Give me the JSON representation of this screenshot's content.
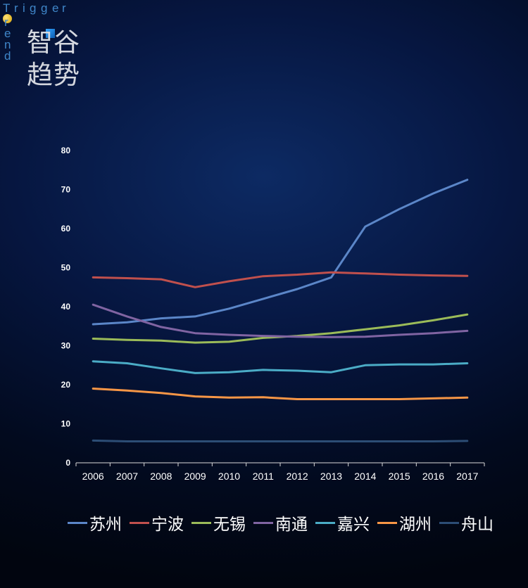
{
  "brand": {
    "letters": [
      "T",
      "r",
      "i",
      "g",
      "g",
      "e",
      "r",
      "r",
      "e",
      "n",
      "d"
    ],
    "cn_line1": "智谷",
    "cn_line2": "趋势"
  },
  "chart_data": {
    "type": "line",
    "x": [
      "2006",
      "2007",
      "2008",
      "2009",
      "2010",
      "2011",
      "2012",
      "2013",
      "2014",
      "2015",
      "2016",
      "2017"
    ],
    "ylim": [
      0,
      80
    ],
    "yticks": [
      0,
      10,
      20,
      30,
      40,
      50,
      60,
      70,
      80
    ],
    "grid": false,
    "legend_position": "bottom",
    "series": [
      {
        "name": "苏州",
        "color": "#5b86c8",
        "values": [
          35.5,
          36,
          37,
          37.5,
          39.5,
          42,
          44.5,
          47.5,
          60.5,
          65,
          69,
          72.5
        ]
      },
      {
        "name": "宁波",
        "color": "#c0504d",
        "values": [
          47.5,
          47.3,
          47,
          45,
          46.5,
          47.8,
          48.2,
          48.8,
          48.5,
          48.2,
          48,
          47.9
        ]
      },
      {
        "name": "无锡",
        "color": "#9bbb59",
        "values": [
          31.8,
          31.5,
          31.3,
          30.8,
          31,
          32,
          32.5,
          33.2,
          34.2,
          35.2,
          36.5,
          38
        ]
      },
      {
        "name": "南通",
        "color": "#8064a2",
        "values": [
          40.5,
          37.5,
          34.8,
          33.2,
          32.8,
          32.5,
          32.3,
          32.2,
          32.3,
          32.8,
          33.2,
          33.8
        ]
      },
      {
        "name": "嘉兴",
        "color": "#4bacc6",
        "values": [
          26,
          25.5,
          24.2,
          23,
          23.2,
          23.8,
          23.6,
          23.2,
          25,
          25.2,
          25.2,
          25.5
        ]
      },
      {
        "name": "湖州",
        "color": "#f79646",
        "values": [
          19,
          18.5,
          17.9,
          17,
          16.7,
          16.8,
          16.3,
          16.3,
          16.3,
          16.3,
          16.5,
          16.7
        ]
      },
      {
        "name": "舟山",
        "color": "#2c4d75",
        "values": [
          5.7,
          5.5,
          5.5,
          5.5,
          5.5,
          5.5,
          5.5,
          5.5,
          5.5,
          5.5,
          5.5,
          5.6
        ]
      }
    ]
  }
}
